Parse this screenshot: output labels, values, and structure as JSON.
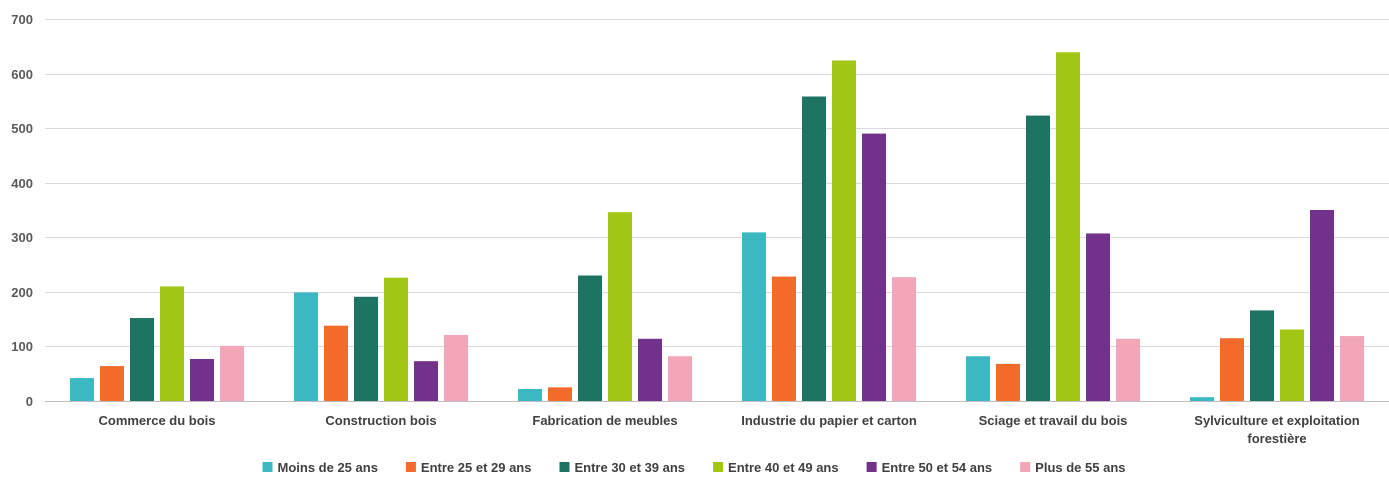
{
  "chart_data": {
    "type": "bar",
    "title": "",
    "xlabel": "",
    "ylabel": "",
    "ylim": [
      0,
      700
    ],
    "yticks": [
      0,
      100,
      200,
      300,
      400,
      500,
      600,
      700
    ],
    "grid": true,
    "legend_position": "bottom",
    "categories": [
      [
        "Commerce du bois"
      ],
      [
        "Construction bois"
      ],
      [
        "Fabrication de meubles"
      ],
      [
        "Industrie du papier et carton"
      ],
      [
        "Sciage et travail du bois"
      ],
      [
        "Sylviculture et exploitation",
        "forestière"
      ]
    ],
    "series": [
      {
        "name": "Moins de 25 ans",
        "color": "#3bb8c1",
        "values": [
          42,
          199,
          22,
          309,
          82,
          7
        ]
      },
      {
        "name": "Entre 25 et 29 ans",
        "color": "#f26b2b",
        "values": [
          64,
          138,
          25,
          228,
          68,
          115
        ]
      },
      {
        "name": "Entre 30 et 39 ans",
        "color": "#1d7463",
        "values": [
          152,
          191,
          230,
          558,
          523,
          166
        ]
      },
      {
        "name": "Entre 40 et 49 ans",
        "color": "#a1c714",
        "values": [
          210,
          226,
          346,
          624,
          639,
          131
        ]
      },
      {
        "name": "Entre 50 et 54 ans",
        "color": "#72318a",
        "values": [
          77,
          73,
          114,
          490,
          307,
          350
        ]
      },
      {
        "name": "Plus de 55 ans",
        "color": "#f4a6b9",
        "values": [
          101,
          121,
          82,
          227,
          114,
          119
        ]
      }
    ]
  }
}
